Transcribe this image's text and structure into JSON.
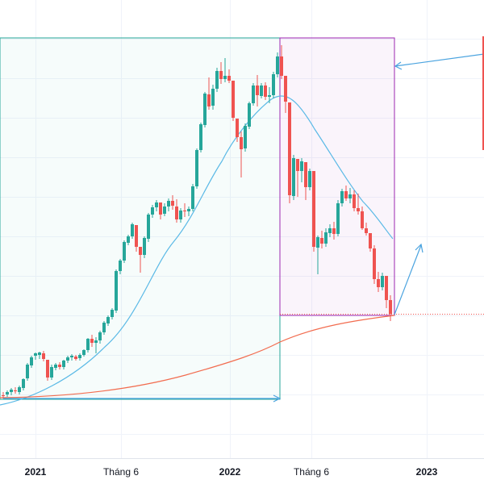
{
  "chart_data": {
    "type": "candlestick",
    "x_axis": {
      "ticks": [
        {
          "label": "2021",
          "major": true
        },
        {
          "label": "Tháng 6",
          "major": false
        },
        {
          "label": "2022",
          "major": true
        },
        {
          "label": "Tháng 6",
          "major": false
        },
        {
          "label": "2023",
          "major": true
        }
      ]
    },
    "y_axis": {
      "labels_visible": false
    },
    "grid": true,
    "colors": {
      "up": "#26a69a",
      "down": "#ef5350",
      "ma_short": "#5ab9e6",
      "ma_long": "#f26c4f",
      "range_box_1": "#26a69a",
      "range_box_2": "#9c27b0",
      "arrows": "#4aa3df",
      "price_line": "#ef5350"
    },
    "annotations": [
      {
        "type": "range-box",
        "name": "rally-box"
      },
      {
        "type": "range-box",
        "name": "decline-box"
      },
      {
        "type": "arrow",
        "name": "projection-arrow"
      },
      {
        "type": "arrow",
        "name": "range-arrow"
      },
      {
        "type": "arrow",
        "name": "callout-arrow"
      },
      {
        "type": "horizontal-line",
        "name": "last-price-line"
      }
    ]
  }
}
